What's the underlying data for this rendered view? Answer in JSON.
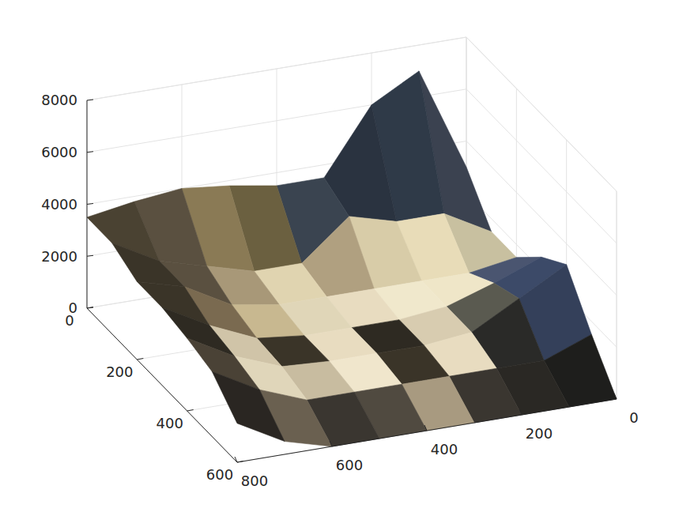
{
  "chart_data": {
    "type": "surface3d",
    "x": [
      0,
      100,
      200,
      300,
      400,
      500,
      600,
      700,
      800
    ],
    "y": [
      0,
      100,
      200,
      300,
      400,
      500,
      600
    ],
    "z": [
      [
        3000,
        7000,
        6000,
        3500,
        3500,
        3800,
        4000,
        3800,
        3500
      ],
      [
        1500,
        2500,
        2500,
        3000,
        1500,
        1500,
        2000,
        2500,
        3500
      ],
      [
        1500,
        1200,
        1200,
        1200,
        1200,
        1200,
        1500,
        2500,
        3000
      ],
      [
        2500,
        1800,
        1200,
        1000,
        1000,
        1000,
        1200,
        2000,
        3000
      ],
      [
        3200,
        2200,
        1200,
        1000,
        1000,
        1000,
        1100,
        1800,
        2800
      ],
      [
        1500,
        800,
        800,
        800,
        800,
        800,
        800,
        1500,
        2500
      ],
      [
        0,
        0,
        0,
        0,
        0,
        0,
        0,
        500,
        1500
      ]
    ],
    "colors": [
      [
        "#3b4250",
        "#2f3a48",
        "#2a3340",
        "#3a4450",
        "#6b6040",
        "#8a7a55",
        "#5a5040",
        "#4a4232"
      ],
      [
        "#c8c0a0",
        "#e8dcb8",
        "#d8cca8",
        "#b0a080",
        "#e0d4b0",
        "#a89878",
        "#5a5040",
        "#3a3428"
      ],
      [
        "#4a5570",
        "#efe6c8",
        "#f0e8cc",
        "#e8dcc0",
        "#e0d6b8",
        "#c8b890",
        "#7a6a50",
        "#3a3428"
      ],
      [
        "#3c4a68",
        "#5a5a50",
        "#d8ccb0",
        "#2e2a22",
        "#e8dcc0",
        "#3a3428",
        "#d0c4a8",
        "#2e2a22"
      ],
      [
        "#34405a",
        "#2a2a28",
        "#e8dcc0",
        "#3a3428",
        "#f0e6cc",
        "#c8bca0",
        "#e0d6ba",
        "#4a4236"
      ],
      [
        "#1e1e1c",
        "#2a2824",
        "#3a3630",
        "#a89a80",
        "#504a40",
        "#3a3630",
        "#6a6050",
        "#2a2622"
      ]
    ],
    "xlim": [
      0,
      800
    ],
    "ylim": [
      0,
      600
    ],
    "zlim": [
      0,
      8000
    ],
    "xticks": [
      0,
      200,
      400,
      600,
      800
    ],
    "yticks": [
      0,
      200,
      400,
      600
    ],
    "zticks": [
      0,
      2000,
      4000,
      6000,
      8000
    ],
    "grid": true
  }
}
